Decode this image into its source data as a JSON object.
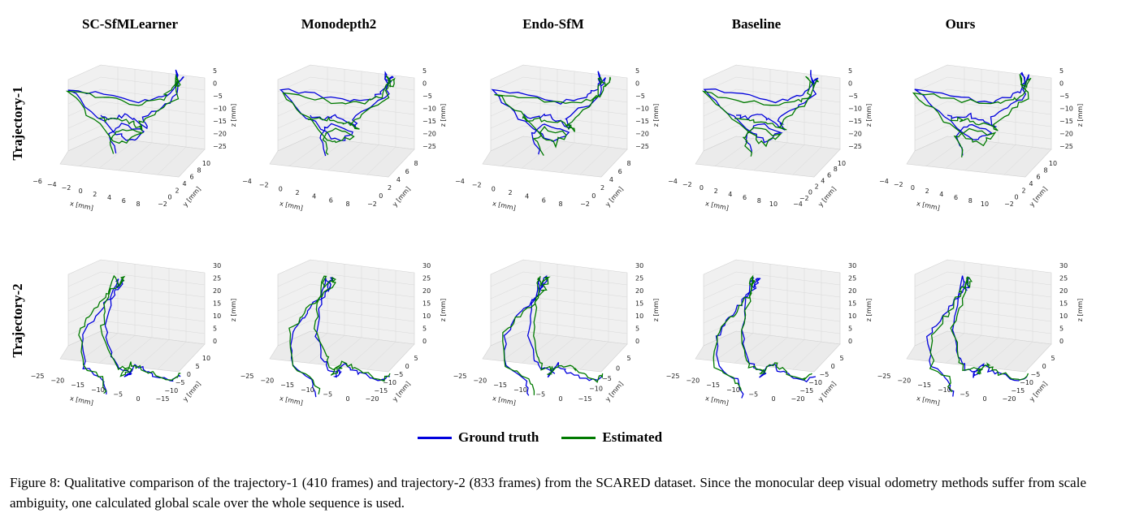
{
  "methods": [
    "SC-SfMLearner",
    "Monodepth2",
    "Endo-SfM",
    "Baseline",
    "Ours"
  ],
  "rows": [
    {
      "label": "Trajectory-1",
      "x_label": "x [mm]",
      "y_label": "y [mm]",
      "z_label": "z [mm]",
      "z_ticks": [
        "5",
        "0",
        "−5",
        "−10",
        "−15",
        "−20",
        "−25"
      ],
      "x_ticks_per_panel": [
        [
          "−6",
          "−4",
          "−2",
          "0",
          "2",
          "4",
          "6",
          "8"
        ],
        [
          "−4",
          "−2",
          "0",
          "2",
          "4",
          "6",
          "8"
        ],
        [
          "−4",
          "−2",
          "0",
          "2",
          "4",
          "6",
          "8"
        ],
        [
          "−4",
          "−2",
          "0",
          "2",
          "4",
          "6",
          "8",
          "10"
        ],
        [
          "−4",
          "−2",
          "0",
          "2",
          "4",
          "6",
          "8",
          "10"
        ]
      ],
      "y_ticks_per_panel": [
        [
          "−2",
          "0",
          "2",
          "4",
          "6",
          "8",
          "10"
        ],
        [
          "−2",
          "0",
          "2",
          "4",
          "6",
          "8"
        ],
        [
          "−2",
          "0",
          "2",
          "4",
          "6",
          "8"
        ],
        [
          "−4",
          "−2",
          "0",
          "2",
          "4",
          "6",
          "8",
          "10"
        ],
        [
          "−2",
          "0",
          "2",
          "4",
          "6",
          "8",
          "10"
        ]
      ]
    },
    {
      "label": "Trajectory-2",
      "x_label": "x [mm]",
      "y_label": "y [mm]",
      "z_label": "z [mm]",
      "z_ticks": [
        "30",
        "25",
        "20",
        "15",
        "10",
        "5",
        "0"
      ],
      "x_ticks_per_panel": [
        [
          "−25",
          "−20",
          "−15",
          "−10",
          "−5",
          "0"
        ],
        [
          "−25",
          "−20",
          "−15",
          "−10",
          "−5",
          "0"
        ],
        [
          "−25",
          "−20",
          "−15",
          "−10",
          "−5",
          "0"
        ],
        [
          "−25",
          "−20",
          "−15",
          "−10",
          "−5",
          "0"
        ],
        [
          "−25",
          "−20",
          "−15",
          "−10",
          "−5",
          "0"
        ]
      ],
      "y_ticks_per_panel": [
        [
          "−15",
          "−10",
          "−5",
          "0",
          "5",
          "10"
        ],
        [
          "−20",
          "−15",
          "−10",
          "−5",
          "0",
          "5"
        ],
        [
          "−15",
          "−10",
          "−5",
          "0",
          "5"
        ],
        [
          "−20",
          "−15",
          "−10",
          "−5",
          "0",
          "5"
        ],
        [
          "−20",
          "−15",
          "−10",
          "−5",
          "0",
          "5"
        ]
      ]
    }
  ],
  "legend": [
    {
      "label": "Ground truth",
      "color": "#0000dd"
    },
    {
      "label": "Estimated",
      "color": "#007a00"
    }
  ],
  "caption": "Figure 8: Qualitative comparison of the trajectory-1 (410 frames) and trajectory-2 (833 frames) from the SCARED dataset. Since the monocular deep visual odometry methods suffer from scale ambiguity, one calculated global scale over the whole sequence is used."
}
